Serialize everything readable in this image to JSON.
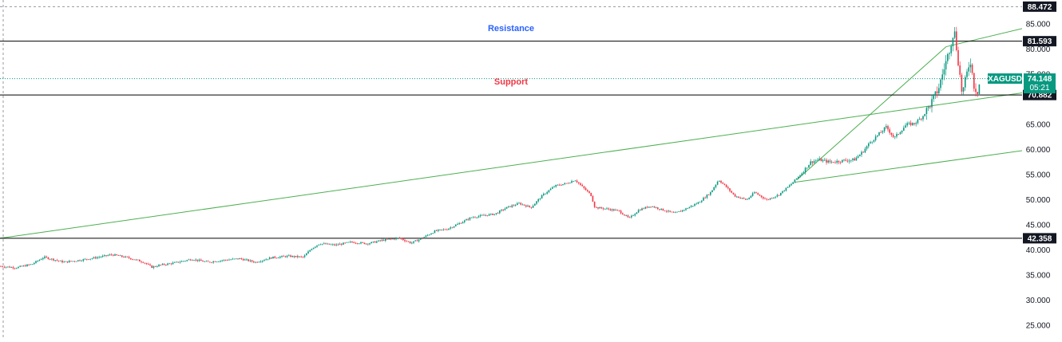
{
  "chart_data": {
    "type": "candlestick",
    "symbol": "XAGUSD",
    "last_price": "74.148",
    "countdown": "05:21",
    "y_ticks": [
      "85.000",
      "80.000",
      "75.000",
      "65.000",
      "60.000",
      "55.000",
      "50.000",
      "45.000",
      "40.000",
      "35.000",
      "30.000",
      "25.000"
    ],
    "ylim": [
      22.5,
      89.0
    ],
    "horizontal_levels": [
      {
        "price": 81.593,
        "label": "81.593"
      },
      {
        "price": 70.882,
        "label": "70.882"
      },
      {
        "price": 42.358,
        "label": "42.358"
      }
    ],
    "top_dashed_level": {
      "price": 88.472,
      "label": "88.472"
    },
    "annotations": [
      {
        "text": "Resistance",
        "color": "#2962ff"
      },
      {
        "text": "Support",
        "color": "#f23645"
      }
    ],
    "price_path": [
      [
        0,
        36.8
      ],
      [
        20,
        36.5
      ],
      [
        40,
        37.2
      ],
      [
        55,
        38.6
      ],
      [
        65,
        38.2
      ],
      [
        80,
        37.6
      ],
      [
        100,
        38.0
      ],
      [
        120,
        38.5
      ],
      [
        140,
        39.1
      ],
      [
        160,
        38.5
      ],
      [
        180,
        37.6
      ],
      [
        190,
        36.6
      ],
      [
        200,
        37.0
      ],
      [
        220,
        37.5
      ],
      [
        240,
        38.2
      ],
      [
        260,
        37.6
      ],
      [
        280,
        38.0
      ],
      [
        300,
        38.3
      ],
      [
        320,
        37.6
      ],
      [
        340,
        38.5
      ],
      [
        360,
        38.8
      ],
      [
        380,
        38.6
      ],
      [
        390,
        40.3
      ],
      [
        400,
        41.3
      ],
      [
        420,
        41.0
      ],
      [
        440,
        41.6
      ],
      [
        460,
        41.3
      ],
      [
        480,
        42.0
      ],
      [
        500,
        42.4
      ],
      [
        515,
        41.4
      ],
      [
        530,
        42.5
      ],
      [
        545,
        43.8
      ],
      [
        560,
        44.2
      ],
      [
        575,
        45.3
      ],
      [
        590,
        46.5
      ],
      [
        605,
        46.9
      ],
      [
        620,
        47.2
      ],
      [
        635,
        48.5
      ],
      [
        650,
        49.3
      ],
      [
        665,
        48.5
      ],
      [
        680,
        51.0
      ],
      [
        695,
        52.8
      ],
      [
        710,
        53.3
      ],
      [
        720,
        54.0
      ],
      [
        730,
        52.5
      ],
      [
        740,
        51.0
      ],
      [
        745,
        48.5
      ],
      [
        760,
        48.2
      ],
      [
        775,
        47.8
      ],
      [
        788,
        46.3
      ],
      [
        800,
        48.0
      ],
      [
        815,
        48.8
      ],
      [
        830,
        48.0
      ],
      [
        845,
        47.3
      ],
      [
        860,
        48.3
      ],
      [
        875,
        49.5
      ],
      [
        890,
        51.5
      ],
      [
        900,
        54.0
      ],
      [
        910,
        52.5
      ],
      [
        920,
        50.8
      ],
      [
        935,
        50.0
      ],
      [
        945,
        51.5
      ],
      [
        960,
        50.0
      ],
      [
        975,
        51.0
      ],
      [
        990,
        53.0
      ],
      [
        1005,
        55.5
      ],
      [
        1015,
        57.5
      ],
      [
        1025,
        58.0
      ],
      [
        1040,
        57.5
      ],
      [
        1055,
        57.8
      ],
      [
        1070,
        58.0
      ],
      [
        1080,
        59.5
      ],
      [
        1090,
        61.5
      ],
      [
        1100,
        63.0
      ],
      [
        1110,
        64.5
      ],
      [
        1120,
        62.3
      ],
      [
        1135,
        65.0
      ],
      [
        1145,
        65.2
      ],
      [
        1155,
        66.5
      ],
      [
        1165,
        69.0
      ],
      [
        1175,
        72.0
      ],
      [
        1182,
        76.0
      ],
      [
        1190,
        80.5
      ],
      [
        1195,
        84.0
      ],
      [
        1198,
        80.0
      ],
      [
        1202,
        75.0
      ],
      [
        1205,
        71.0
      ],
      [
        1210,
        74.5
      ],
      [
        1215,
        78.0
      ],
      [
        1220,
        72.5
      ],
      [
        1224,
        71.5
      ],
      [
        1228,
        74.1
      ]
    ],
    "trendlines": [
      {
        "x1": 0,
        "y1": 42.36,
        "x2": 1280,
        "y2": 71.3
      },
      {
        "x1": 995,
        "y1": 53.5,
        "x2": 1280,
        "y2": 59.8
      },
      {
        "x1": 998,
        "y1": 54.0,
        "x2": 1185,
        "y2": 80.5
      },
      {
        "x1": 1185,
        "y1": 80.5,
        "x2": 1280,
        "y2": 84.1
      }
    ],
    "colors": {
      "up": "#089981",
      "down": "#f23645",
      "trendline": "#4caf50",
      "level": "#000000",
      "badge": "#089981"
    }
  }
}
